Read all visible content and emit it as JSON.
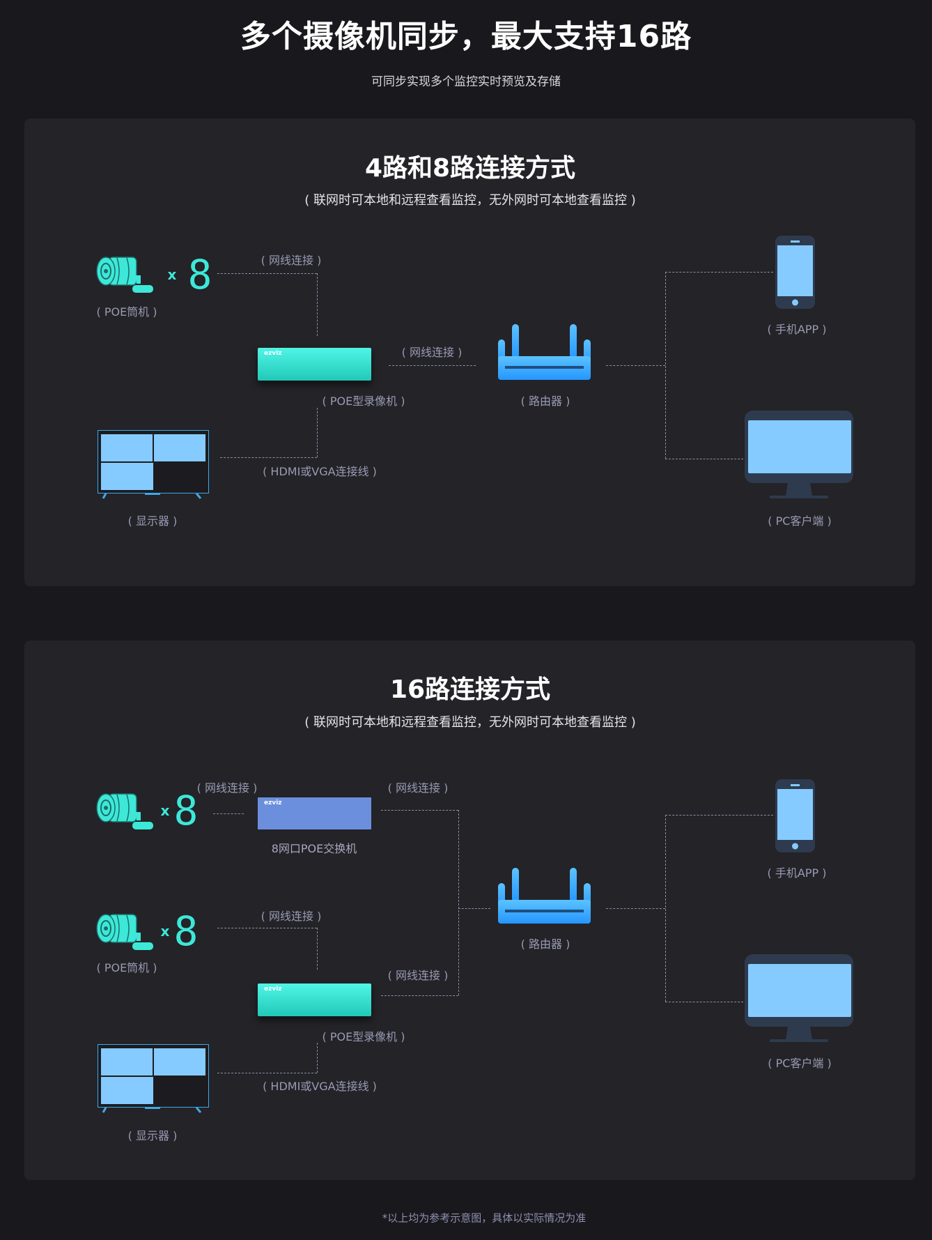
{
  "header": {
    "title": "多个摄像机同步，最大支持16路",
    "subtitle": "可同步实现多个监控实时预览及存储"
  },
  "panel1": {
    "heading": "4路和8路连接方式",
    "subheading": "( 联网时可本地和远程查看监控，无外网时可本地查看监控 )",
    "camera_label": "( POE筒机 )",
    "multiplier_x": "x",
    "camera_count": "8",
    "cable_camera": "( 网线连接 )",
    "nvr_brand": "ezviz",
    "nvr_label": "( POE型录像机 )",
    "cable_router": "( 网线连接 )",
    "router_label": "( 路由器 )",
    "phone_label": "( 手机APP )",
    "pc_label": "( PC客户端 )",
    "hdmi_label": "( HDMI或VGA连接线 )",
    "monitor_label": "( 显示器 )"
  },
  "panel2": {
    "heading": "16路连接方式",
    "subheading": "( 联网时可本地和远程查看监控，无外网时可本地查看监控 )",
    "multiplier_x": "x",
    "camera_count_1": "8",
    "cable_switch": "( 网线连接 )",
    "switch_brand": "ezviz",
    "switch_label": "8网口POE交换机",
    "cable_switch_router": "( 网线连接 )",
    "camera_count_2": "8",
    "camera_label": "( POE筒机 )",
    "cable_camera": "( 网线连接 )",
    "nvr_brand": "ezviz",
    "nvr_label": "( POE型录像机 )",
    "cable_nvr_router": "( 网线连接 )",
    "router_label": "( 路由器 )",
    "phone_label": "( 手机APP )",
    "pc_label": "( PC客户端 )",
    "hdmi_label": "( HDMI或VGA连接线 )",
    "monitor_label": "( 显示器 )"
  },
  "footer": "*以上均为参考示意图，具体以实际情况为准",
  "colors": {
    "background": "#19191d",
    "panel": "#232328",
    "accent_cyan": "#3de8d8",
    "router_blue": "#2fa0ff",
    "screen_blue": "#86cbff",
    "switch_blue": "#6b8fdc"
  }
}
